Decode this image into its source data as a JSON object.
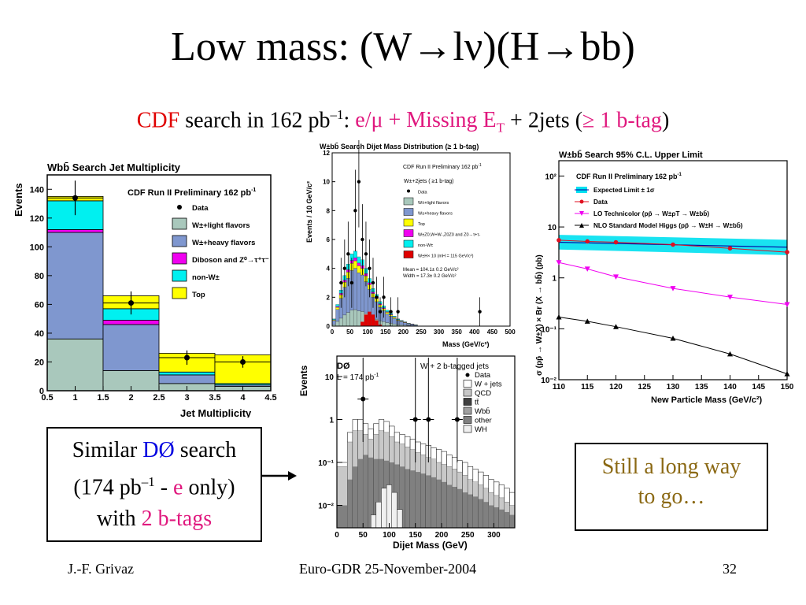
{
  "slide": {
    "title_pre": "Low mass: (W",
    "title_arrow1": "→",
    "title_mid": "lν)(H",
    "title_arrow2": "→",
    "title_post": "bb)",
    "subtitle": {
      "cdf": "CDF",
      "text1": " search in 162 pb",
      "sup1": "–1",
      "text2": ": ",
      "lepton": "e/μ + Missing E",
      "lepton_sub": "T",
      "text3": " + 2jets (",
      "btag": "≥ 1 b-tag",
      "text4": ")"
    },
    "similar_box": {
      "l1a": "Similar ",
      "l1b": "DØ",
      "l1c": " search",
      "l2a": "(174 pb",
      "l2sup": "–1",
      "l2b": " - ",
      "l2c": "e",
      "l2d": " only)",
      "l3a": "with ",
      "l3b": "2 b-tags"
    },
    "still_box": {
      "l1": "Still a long way",
      "l2": "to go…"
    },
    "footer": {
      "left": "J.-F. Grivaz",
      "center": "Euro-GDR 25-November-2004",
      "right": "32"
    },
    "colors": {
      "accent_red": "#e00000",
      "accent_pink": "#e0187e",
      "accent_blue": "#0000e0",
      "still_text": "#8b6914"
    }
  },
  "chart_data": [
    {
      "type": "bar",
      "title": "Wbb̄ Search    Jet Multiplicity",
      "header": "CDF Run II Preliminary  162 pb",
      "header_sup": "-1",
      "xlabel": "Jet Multiplicity",
      "ylabel": "Events",
      "xlim": [
        0.5,
        4.5
      ],
      "ylim": [
        0,
        150
      ],
      "xticks": [
        "0.5",
        "1",
        "1.5",
        "2",
        "2.5",
        "3",
        "3.5",
        "4",
        "4.5"
      ],
      "yticks": [
        "0",
        "20",
        "40",
        "60",
        "80",
        "100",
        "120",
        "140"
      ],
      "categories": [
        "1",
        "2",
        "3",
        "4"
      ],
      "series": [
        {
          "name": "W±+light flavors",
          "color": "#a9c8bc",
          "values": [
            36,
            14,
            5,
            3
          ]
        },
        {
          "name": "W±+heavy flavors",
          "color": "#7f97cf",
          "values": [
            74,
            32,
            6,
            1
          ]
        },
        {
          "name": "Diboson and Z0→τ+τ-",
          "color": "#f000f0",
          "values": [
            2,
            3,
            0,
            0
          ]
        },
        {
          "name": "non-W±",
          "color": "#00f0f0",
          "values": [
            20,
            8,
            2,
            1
          ]
        },
        {
          "name": "Top",
          "color": "#ffff00",
          "values": [
            3,
            9,
            13,
            20
          ]
        }
      ],
      "legend_labels": {
        "data": "Data",
        "wlight": "W±+light flavors",
        "wheavy": "W±+heavy flavors",
        "diboson": "Diboson and Z",
        "nonw": "non-W±",
        "top": "Top"
      },
      "data_points": {
        "x": [
          1,
          2,
          3,
          4
        ],
        "y": [
          134,
          61,
          23,
          20
        ],
        "err": [
          12,
          8,
          5,
          4
        ]
      }
    },
    {
      "type": "bar",
      "title": "W±bb̄ Search Dijet Mass Distribution (≥ 1 b-tag)",
      "header": "CDF Run II Preliminary  162 pb",
      "header_sup": "-1",
      "xlabel": "Mass (GeV/c²)",
      "ylabel": "Events / 10 GeV/c²",
      "xlim": [
        0,
        500
      ],
      "ylim": [
        0,
        12
      ],
      "xticks": [
        "0",
        "50",
        "100",
        "150",
        "200",
        "250",
        "300",
        "350",
        "400",
        "450",
        "500"
      ],
      "yticks": [
        "0",
        "2",
        "4",
        "6",
        "8",
        "10",
        "12"
      ],
      "legend": [
        "W±+2jets ( ≥1 b-tag)",
        "Data",
        "W±+light flavors",
        "W±+heavy flavors",
        "Top",
        "W±Z0,W+W-,Z0Z0 and Z0→τ+τ-",
        "non-W±",
        "W±H× 10 (mH = 115 GeV/c²)"
      ],
      "mean_text": "Mean = 104.1± 0.2 GeV/c²",
      "width_text": "Width = 17.3± 0.2 GeV/c²",
      "bins": [
        5,
        15,
        25,
        35,
        45,
        55,
        65,
        75,
        85,
        95,
        105,
        115,
        125,
        135,
        145,
        155,
        165,
        175,
        185,
        195,
        205,
        215,
        225,
        235
      ],
      "bkg_total": [
        0.5,
        1.5,
        2.5,
        3.5,
        4.3,
        5.0,
        5.2,
        4.8,
        4.6,
        4.0,
        3.3,
        2.6,
        2.2,
        1.7,
        1.4,
        1.1,
        0.9,
        0.7,
        0.5,
        0.4,
        0.3,
        0.2,
        0.15,
        0.1
      ],
      "signal": [
        0,
        0,
        0,
        0,
        0,
        0,
        0,
        0,
        0.3,
        0.8,
        1.0,
        0.8,
        0.4,
        0.1,
        0,
        0,
        0,
        0,
        0,
        0,
        0,
        0,
        0,
        0
      ],
      "data_points": {
        "x": [
          25,
          35,
          45,
          55,
          65,
          75,
          85,
          95,
          105,
          115,
          125,
          135,
          145,
          165,
          185,
          415
        ],
        "y": [
          3,
          4,
          5,
          3,
          8,
          10,
          6,
          5,
          4,
          3,
          2,
          1,
          2,
          1,
          1,
          1
        ]
      }
    },
    {
      "type": "line",
      "title": "W±bb̄ Search   95% C.L. Upper Limit",
      "header": "CDF Run II Preliminary  162 pb",
      "header_sup": "-1",
      "xlabel": "New Particle Mass (GeV/c²)",
      "ylabel": "σ (pp̄ → W±X) × Br (X → bb̄) (pb)",
      "xlim": [
        110,
        150
      ],
      "ylim": [
        0.01,
        200
      ],
      "log_y": true,
      "xticks": [
        "110",
        "115",
        "120",
        "125",
        "130",
        "135",
        "140",
        "145",
        "150"
      ],
      "yticks": [
        "10⁻²",
        "10⁻¹",
        "1",
        "10",
        "10²"
      ],
      "series": [
        {
          "name": "Expected Limit ± 1σ",
          "color": "#00e0f0",
          "x": [
            110,
            150
          ],
          "y": [
            5.0,
            4.0
          ],
          "band_lo": [
            3.6,
            2.8
          ],
          "band_hi": [
            7.0,
            5.6
          ]
        },
        {
          "name": "Data",
          "color": "#e01020",
          "x": [
            110,
            115,
            120,
            130,
            140,
            150
          ],
          "y": [
            5.5,
            5.2,
            5.0,
            4.5,
            3.8,
            3.2
          ]
        },
        {
          "name": "LO Technicolor (pp̄ → W±ρT → W±bb̄)",
          "color": "#f000f0",
          "x": [
            110,
            115,
            120,
            130,
            140,
            150
          ],
          "y": [
            2.0,
            1.5,
            1.05,
            0.62,
            0.42,
            0.3
          ]
        },
        {
          "name": "NLO Standard Model Higgs (pp̄ → W±H → W±bb̄)",
          "color": "#000000",
          "x": [
            110,
            115,
            120,
            130,
            140,
            150
          ],
          "y": [
            0.17,
            0.14,
            0.11,
            0.065,
            0.032,
            0.013
          ]
        }
      ]
    },
    {
      "type": "bar",
      "title": "W + 2 b-tagged jets",
      "header": "DØ",
      "lumi": "L = 174 pb",
      "lumi_sup": "-1",
      "xlabel": "Dijet Mass (GeV)",
      "ylabel": "Events",
      "log_y": true,
      "xlim": [
        0,
        340
      ],
      "ylim": [
        0.003,
        30
      ],
      "xticks": [
        "0",
        "50",
        "100",
        "150",
        "200",
        "250",
        "300"
      ],
      "yticks": [
        "10⁻²",
        "10⁻¹",
        "1",
        "10"
      ],
      "legend": [
        "Data",
        "W + jets",
        "QCD",
        "tt̄",
        "Wbb̄",
        "other",
        "WH"
      ],
      "bin_edges": [
        0,
        20,
        30,
        40,
        50,
        60,
        70,
        80,
        90,
        100,
        110,
        120,
        130,
        140,
        150,
        160,
        170,
        180,
        190,
        200,
        210,
        220,
        230,
        240,
        250,
        260,
        270,
        280,
        290,
        300,
        310,
        320,
        330,
        340
      ],
      "stack_totals": [
        0.1,
        0.5,
        1.0,
        1.0,
        0.8,
        0.6,
        0.8,
        1.0,
        0.9,
        0.7,
        0.5,
        0.45,
        0.4,
        0.35,
        0.3,
        0.27,
        0.25,
        0.22,
        0.2,
        0.18,
        0.15,
        0.13,
        0.11,
        0.1,
        0.08,
        0.07,
        0.06,
        0.05,
        0.04,
        0.035,
        0.03,
        0.025,
        0.02
      ],
      "wjets_tops": [
        0.08,
        0.3,
        0.55,
        0.55,
        0.45,
        0.35,
        0.45,
        0.55,
        0.5,
        0.4,
        0.3,
        0.27,
        0.23,
        0.2,
        0.17,
        0.15,
        0.13,
        0.12,
        0.1,
        0.09,
        0.08,
        0.07,
        0.06,
        0.05,
        0.04,
        0.035,
        0.03,
        0.025,
        0.02,
        0.017,
        0.015,
        0.012,
        0.01
      ],
      "dark_tops": [
        0.01,
        0.04,
        0.08,
        0.12,
        0.15,
        0.13,
        0.12,
        0.12,
        0.11,
        0.1,
        0.09,
        0.08,
        0.07,
        0.065,
        0.06,
        0.055,
        0.05,
        0.045,
        0.04,
        0.035,
        0.03,
        0.027,
        0.024,
        0.02,
        0.018,
        0.016,
        0.014,
        0.012,
        0.01,
        0.009,
        0.008,
        0.007,
        0.006
      ],
      "wh_peak": {
        "x": [
          70,
          80,
          90,
          100,
          110,
          120
        ],
        "y": [
          0.006,
          0.012,
          0.025,
          0.03,
          0.02,
          0.008
        ]
      },
      "data_points": {
        "x": [
          50,
          150,
          175,
          230
        ],
        "y": [
          3,
          1,
          1,
          1
        ]
      }
    }
  ]
}
